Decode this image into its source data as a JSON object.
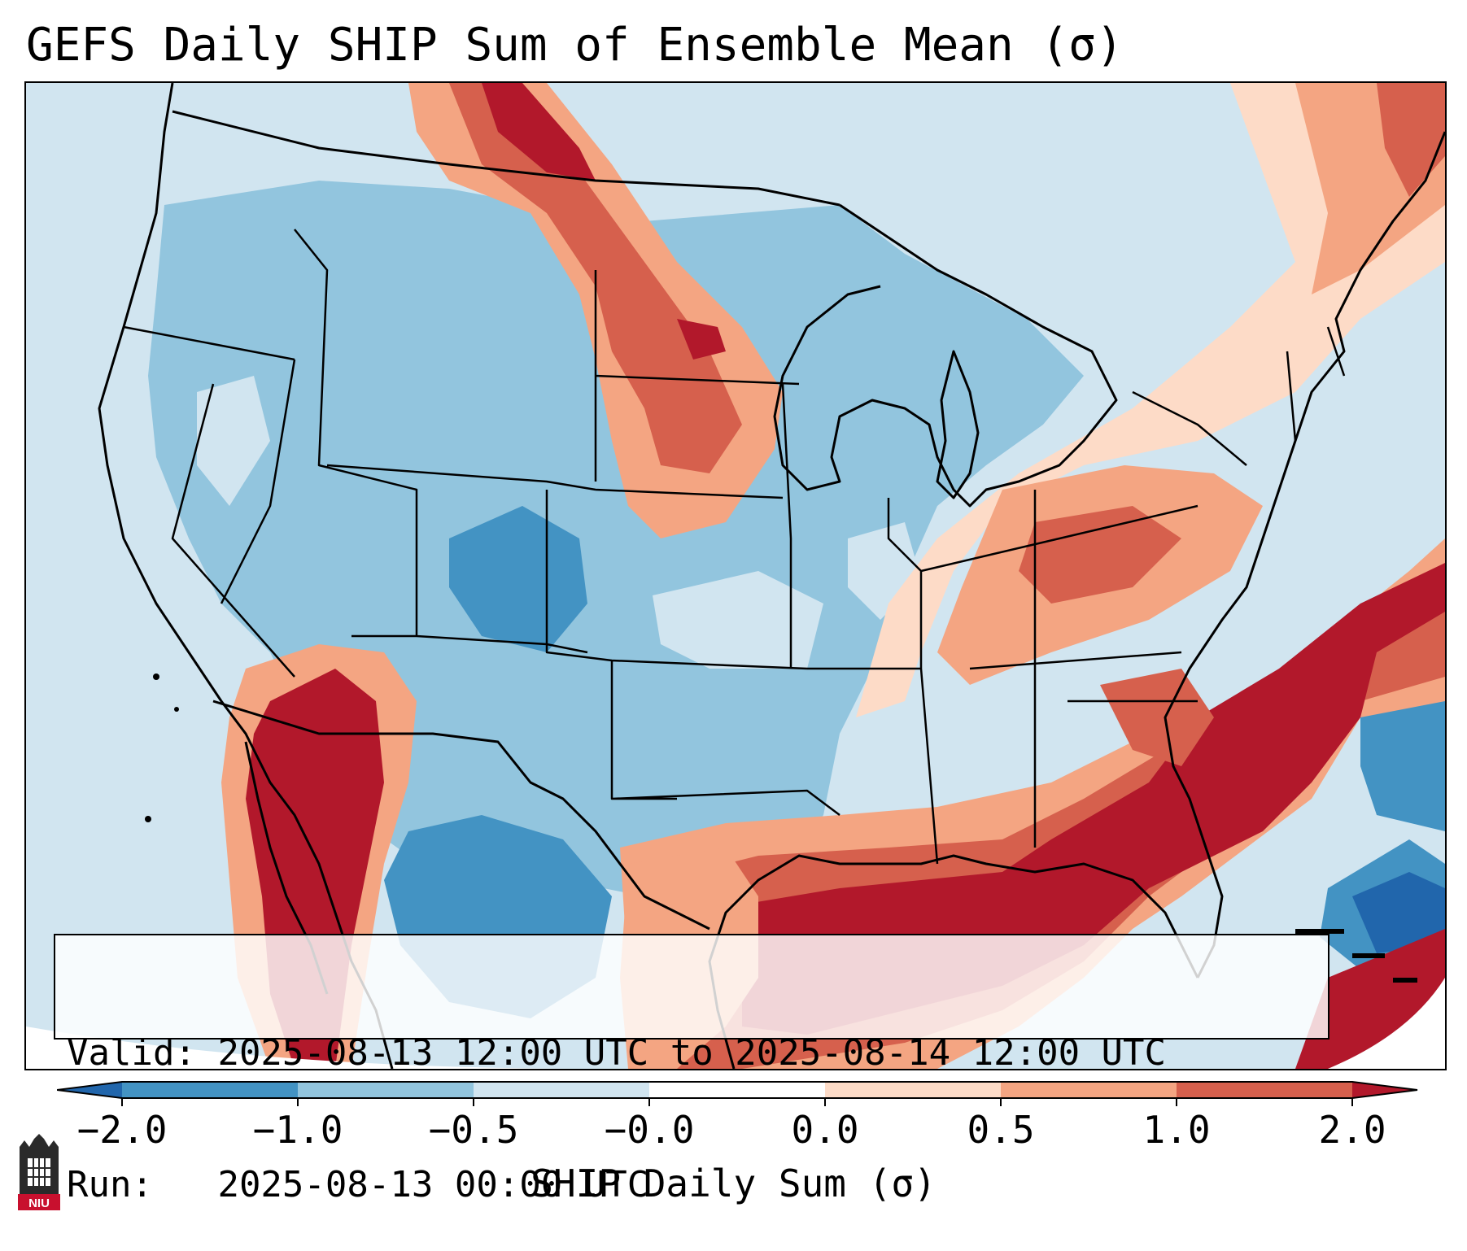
{
  "title": "GEFS Daily SHIP Sum of Ensemble Mean (σ)",
  "valid": {
    "label": "Valid:",
    "range": "2025-08-13 12:00 UTC to 2025-08-14 12:00 UTC"
  },
  "run": {
    "label": "Run:",
    "time": "2025-08-13 00:00 UTC"
  },
  "colorbar": {
    "label": "SHIP Daily Sum (σ)",
    "ticks": [
      "−2.0",
      "−1.0",
      "−0.5",
      "−0.0",
      "0.0",
      "0.5",
      "1.0",
      "2.0"
    ],
    "colors": [
      "#2166ac",
      "#4393c3",
      "#92c5de",
      "#d1e5f0",
      "#ffffff",
      "#fddbc7",
      "#f4a582",
      "#d6604d",
      "#b2182b"
    ],
    "extend": "both"
  },
  "map": {
    "region": "Contiguous United States, northern Mexico, Gulf of Mexico, western Atlantic",
    "background_color": "#d1e5f0"
  },
  "logo": {
    "text": "NIU",
    "icon": "niu-castle-logo-icon"
  }
}
